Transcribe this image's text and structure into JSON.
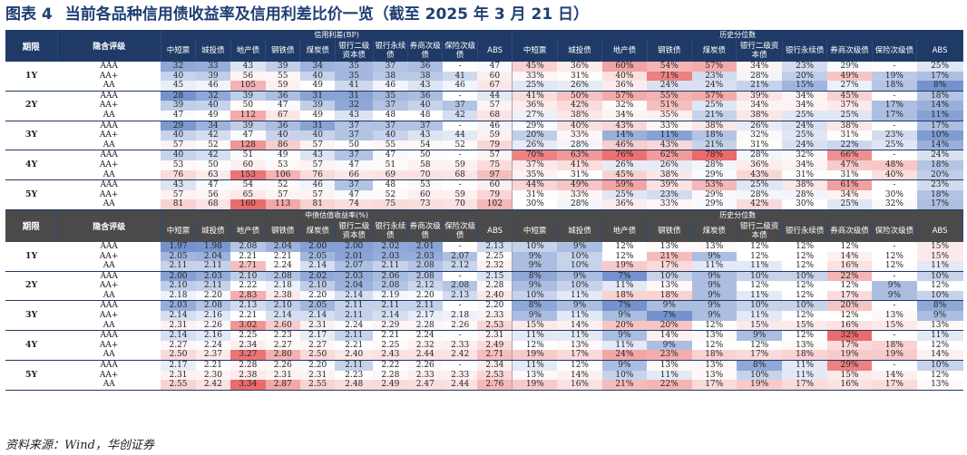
{
  "title": {
    "label": "图表 4",
    "text": "当前各品种信用债收益率及信用利差比价一览（截至 2025 年 3 月 21 日）"
  },
  "source": "资料来源：Wind，华创证券",
  "sections": [
    {
      "header": {
        "period": "期限",
        "rating": "隐含评级",
        "group_left": "信用利差(BP)",
        "group_right": "历史分位数",
        "cols": [
          "中短票",
          "城投债",
          "地产债",
          "钢铁债",
          "煤炭债",
          "银行二级资本债",
          "银行永续债",
          "券商次级债",
          "保险次级债",
          "ABS"
        ]
      },
      "periods": [
        {
          "label": "1Y",
          "rows": [
            {
              "rating": "AAA",
              "vals": [
                "32",
                "33",
                "43",
                "39",
                "34",
                "35",
                "37",
                "36",
                "-",
                "47"
              ],
              "pct": [
                "45%",
                "36%",
                "60%",
                "54%",
                "57%",
                "34%",
                "23%",
                "29%",
                "-",
                "25%"
              ]
            },
            {
              "rating": "AA+",
              "vals": [
                "40",
                "39",
                "56",
                "55",
                "40",
                "35",
                "38",
                "38",
                "41",
                "60"
              ],
              "pct": [
                "33%",
                "31%",
                "40%",
                "71%",
                "23%",
                "28%",
                "20%",
                "49%",
                "19%",
                "17%"
              ]
            },
            {
              "rating": "AA",
              "vals": [
                "45",
                "46",
                "105",
                "59",
                "49",
                "41",
                "46",
                "43",
                "46",
                "67"
              ],
              "pct": [
                "25%",
                "26%",
                "36%",
                "24%",
                "24%",
                "21%",
                "15%",
                "27%",
                "18%",
                "8%"
              ]
            }
          ]
        },
        {
          "label": "2Y",
          "rows": [
            {
              "rating": "AAA",
              "vals": [
                "28",
                "32",
                "39",
                "36",
                "31",
                "31",
                "35",
                "36",
                "-",
                "44"
              ],
              "pct": [
                "41%",
                "50%",
                "57%",
                "55%",
                "57%",
                "39%",
                "34%",
                "45%",
                "-",
                "18%"
              ]
            },
            {
              "rating": "AA+",
              "vals": [
                "39",
                "40",
                "50",
                "47",
                "39",
                "32",
                "37",
                "40",
                "37",
                "57"
              ],
              "pct": [
                "36%",
                "42%",
                "32%",
                "51%",
                "25%",
                "34%",
                "34%",
                "37%",
                "17%",
                "14%"
              ]
            },
            {
              "rating": "AA",
              "vals": [
                "47",
                "49",
                "112",
                "67",
                "49",
                "43",
                "48",
                "48",
                "42",
                "68"
              ],
              "pct": [
                "27%",
                "38%",
                "34%",
                "35%",
                "21%",
                "38%",
                "25%",
                "25%",
                "17%",
                "11%"
              ]
            }
          ]
        },
        {
          "label": "3Y",
          "rows": [
            {
              "rating": "AAA",
              "vals": [
                "29",
                "34",
                "39",
                "36",
                "31",
                "37",
                "37",
                "37",
                "-",
                "46"
              ],
              "pct": [
                "29%",
                "40%",
                "43%",
                "33%",
                "38%",
                "26%",
                "24%",
                "38%",
                "-",
                "17%"
              ]
            },
            {
              "rating": "AA+",
              "vals": [
                "40",
                "42",
                "47",
                "40",
                "40",
                "37",
                "40",
                "43",
                "44",
                "59"
              ],
              "pct": [
                "20%",
                "33%",
                "14%",
                "11%",
                "18%",
                "32%",
                "25%",
                "31%",
                "23%",
                "10%"
              ]
            },
            {
              "rating": "AA",
              "vals": [
                "57",
                "52",
                "128",
                "86",
                "57",
                "50",
                "55",
                "54",
                "52",
                "79"
              ],
              "pct": [
                "26%",
                "28%",
                "46%",
                "43%",
                "21%",
                "31%",
                "24%",
                "22%",
                "25%",
                "14%"
              ]
            }
          ]
        },
        {
          "label": "4Y",
          "rows": [
            {
              "rating": "AAA",
              "vals": [
                "40",
                "42",
                "51",
                "49",
                "43",
                "37",
                "47",
                "50",
                "-",
                "57"
              ],
              "pct": [
                "70%",
                "63%",
                "76%",
                "62%",
                "78%",
                "28%",
                "32%",
                "66%",
                "-",
                "24%"
              ]
            },
            {
              "rating": "AA+",
              "vals": [
                "53",
                "50",
                "60",
                "53",
                "57",
                "47",
                "51",
                "58",
                "59",
                "75"
              ],
              "pct": [
                "37%",
                "41%",
                "26%",
                "26%",
                "28%",
                "36%",
                "34%",
                "47%",
                "48%",
                "18%"
              ]
            },
            {
              "rating": "AA",
              "vals": [
                "76",
                "63",
                "153",
                "106",
                "76",
                "66",
                "69",
                "70",
                "68",
                "97"
              ],
              "pct": [
                "35%",
                "31%",
                "45%",
                "38%",
                "29%",
                "43%",
                "31%",
                "31%",
                "40%",
                "20%"
              ]
            }
          ]
        },
        {
          "label": "5Y",
          "rows": [
            {
              "rating": "AAA",
              "vals": [
                "43",
                "47",
                "54",
                "52",
                "46",
                "37",
                "48",
                "53",
                "-",
                "60"
              ],
              "pct": [
                "44%",
                "49%",
                "59%",
                "39%",
                "53%",
                "25%",
                "38%",
                "61%",
                "-",
                "23%"
              ]
            },
            {
              "rating": "AA+",
              "vals": [
                "57",
                "56",
                "65",
                "57",
                "57",
                "47",
                "52",
                "60",
                "59",
                "79"
              ],
              "pct": [
                "31%",
                "33%",
                "25%",
                "23%",
                "29%",
                "28%",
                "28%",
                "34%",
                "30%",
                "18%"
              ]
            },
            {
              "rating": "AA",
              "vals": [
                "81",
                "68",
                "160",
                "113",
                "81",
                "74",
                "75",
                "73",
                "70",
                "102"
              ],
              "pct": [
                "30%",
                "28%",
                "36%",
                "33%",
                "29%",
                "42%",
                "30%",
                "25%",
                "32%",
                "17%"
              ]
            }
          ]
        }
      ]
    },
    {
      "header": {
        "period": "期限",
        "rating": "隐含评级",
        "group_left": "中债估值收益率(%)",
        "group_right": "历史分位数",
        "cols": [
          "中短票",
          "城投债",
          "地产债",
          "钢铁债",
          "煤炭债",
          "银行二级资本债",
          "银行永续债",
          "券商次级债",
          "保险次级债",
          "ABS"
        ]
      },
      "periods": [
        {
          "label": "1Y",
          "rows": [
            {
              "rating": "AAA",
              "vals": [
                "1.97",
                "1.98",
                "2.08",
                "2.04",
                "2.00",
                "2.00",
                "2.02",
                "2.01",
                "-",
                "2.13"
              ],
              "pct": [
                "10%",
                "9%",
                "12%",
                "13%",
                "13%",
                "12%",
                "12%",
                "12%",
                "-",
                "15%"
              ]
            },
            {
              "rating": "AA+",
              "vals": [
                "2.05",
                "2.04",
                "2.21",
                "2.21",
                "2.05",
                "2.01",
                "2.03",
                "2.03",
                "2.07",
                "2.25"
              ],
              "pct": [
                "9%",
                "10%",
                "12%",
                "21%",
                "9%",
                "12%",
                "12%",
                "14%",
                "12%",
                "15%"
              ]
            },
            {
              "rating": "AA",
              "vals": [
                "2.11",
                "2.11",
                "2.71",
                "2.24",
                "2.14",
                "2.07",
                "2.11",
                "2.08",
                "2.12",
                "2.32"
              ],
              "pct": [
                "9%",
                "10%",
                "19%",
                "17%",
                "11%",
                "11%",
                "12%",
                "16%",
                "12%",
                "11%"
              ]
            }
          ]
        },
        {
          "label": "2Y",
          "rows": [
            {
              "rating": "AAA",
              "vals": [
                "2.00",
                "2.03",
                "2.10",
                "2.08",
                "2.02",
                "2.03",
                "2.06",
                "2.08",
                "-",
                "2.15"
              ],
              "pct": [
                "8%",
                "9%",
                "7%",
                "10%",
                "9%",
                "10%",
                "10%",
                "22%",
                "-",
                "10%"
              ]
            },
            {
              "rating": "AA+",
              "vals": [
                "2.10",
                "2.11",
                "2.22",
                "2.18",
                "2.10",
                "2.04",
                "2.08",
                "2.12",
                "2.08",
                "2.28"
              ],
              "pct": [
                "9%",
                "10%",
                "11%",
                "13%",
                "9%",
                "12%",
                "12%",
                "12%",
                "9%",
                "12%"
              ]
            },
            {
              "rating": "AA",
              "vals": [
                "2.18",
                "2.20",
                "2.83",
                "2.38",
                "2.20",
                "2.14",
                "2.19",
                "2.20",
                "2.13",
                "2.40"
              ],
              "pct": [
                "10%",
                "11%",
                "18%",
                "18%",
                "9%",
                "11%",
                "12%",
                "17%",
                "9%",
                "10%"
              ]
            }
          ]
        },
        {
          "label": "3Y",
          "rows": [
            {
              "rating": "AAA",
              "vals": [
                "2.03",
                "2.08",
                "2.13",
                "2.10",
                "2.05",
                "2.11",
                "2.11",
                "2.11",
                "-",
                "2.20"
              ],
              "pct": [
                "8%",
                "9%",
                "7%",
                "9%",
                "9%",
                "10%",
                "10%",
                "20%",
                "-",
                "8%"
              ]
            },
            {
              "rating": "AA+",
              "vals": [
                "2.14",
                "2.16",
                "2.21",
                "2.14",
                "2.14",
                "2.11",
                "2.14",
                "2.17",
                "2.18",
                "2.33"
              ],
              "pct": [
                "9%",
                "11%",
                "9%",
                "7%",
                "9%",
                "11%",
                "12%",
                "12%",
                "13%",
                "9%"
              ]
            },
            {
              "rating": "AA",
              "vals": [
                "2.31",
                "2.26",
                "3.02",
                "2.60",
                "2.31",
                "2.24",
                "2.29",
                "2.28",
                "2.26",
                "2.53"
              ],
              "pct": [
                "15%",
                "14%",
                "20%",
                "20%",
                "12%",
                "15%",
                "15%",
                "16%",
                "15%",
                "13%"
              ]
            }
          ]
        },
        {
          "label": "4Y",
          "rows": [
            {
              "rating": "AAA",
              "vals": [
                "2.14",
                "2.16",
                "2.25",
                "2.23",
                "2.17",
                "2.11",
                "2.21",
                "2.24",
                "-",
                "2.31"
              ],
              "pct": [
                "11%",
                "11%",
                "9%",
                "14%",
                "13%",
                "9%",
                "12%",
                "32%",
                "-",
                "11%"
              ]
            },
            {
              "rating": "AA+",
              "vals": [
                "2.27",
                "2.24",
                "2.34",
                "2.27",
                "2.27",
                "2.21",
                "2.25",
                "2.32",
                "2.33",
                "2.49"
              ],
              "pct": [
                "12%",
                "13%",
                "11%",
                "9%",
                "12%",
                "12%",
                "13%",
                "17%",
                "18%",
                "12%"
              ]
            },
            {
              "rating": "AA",
              "vals": [
                "2.50",
                "2.37",
                "3.27",
                "2.80",
                "2.50",
                "2.40",
                "2.43",
                "2.44",
                "2.42",
                "2.71"
              ],
              "pct": [
                "19%",
                "17%",
                "24%",
                "23%",
                "18%",
                "17%",
                "18%",
                "19%",
                "19%",
                "14%"
              ]
            }
          ]
        },
        {
          "label": "5Y",
          "rows": [
            {
              "rating": "AAA",
              "vals": [
                "2.17",
                "2.21",
                "2.28",
                "2.26",
                "2.20",
                "2.11",
                "2.22",
                "2.26",
                "-",
                "2.34"
              ],
              "pct": [
                "11%",
                "12%",
                "9%",
                "13%",
                "13%",
                "8%",
                "11%",
                "29%",
                "-",
                "10%"
              ]
            },
            {
              "rating": "AA+",
              "vals": [
                "2.31",
                "2.30",
                "2.38",
                "2.31",
                "2.31",
                "2.23",
                "2.28",
                "2.33",
                "2.33",
                "2.53"
              ],
              "pct": [
                "13%",
                "14%",
                "10%",
                "11%",
                "13%",
                "10%",
                "11%",
                "15%",
                "14%",
                "12%"
              ]
            },
            {
              "rating": "AA",
              "vals": [
                "2.55",
                "2.42",
                "3.34",
                "2.87",
                "2.55",
                "2.48",
                "2.49",
                "2.47",
                "2.44",
                "2.76"
              ],
              "pct": [
                "19%",
                "16%",
                "21%",
                "22%",
                "17%",
                "19%",
                "17%",
                "16%",
                "17%",
                "13%"
              ]
            }
          ]
        }
      ]
    }
  ],
  "colors": {
    "header_bg": "#1f3a66",
    "header_bg_alt": "#4a4a4a",
    "title": "#1f3f73",
    "low": "#5b7fc4",
    "mid": "#ffffff",
    "high": "#e85a5a"
  }
}
